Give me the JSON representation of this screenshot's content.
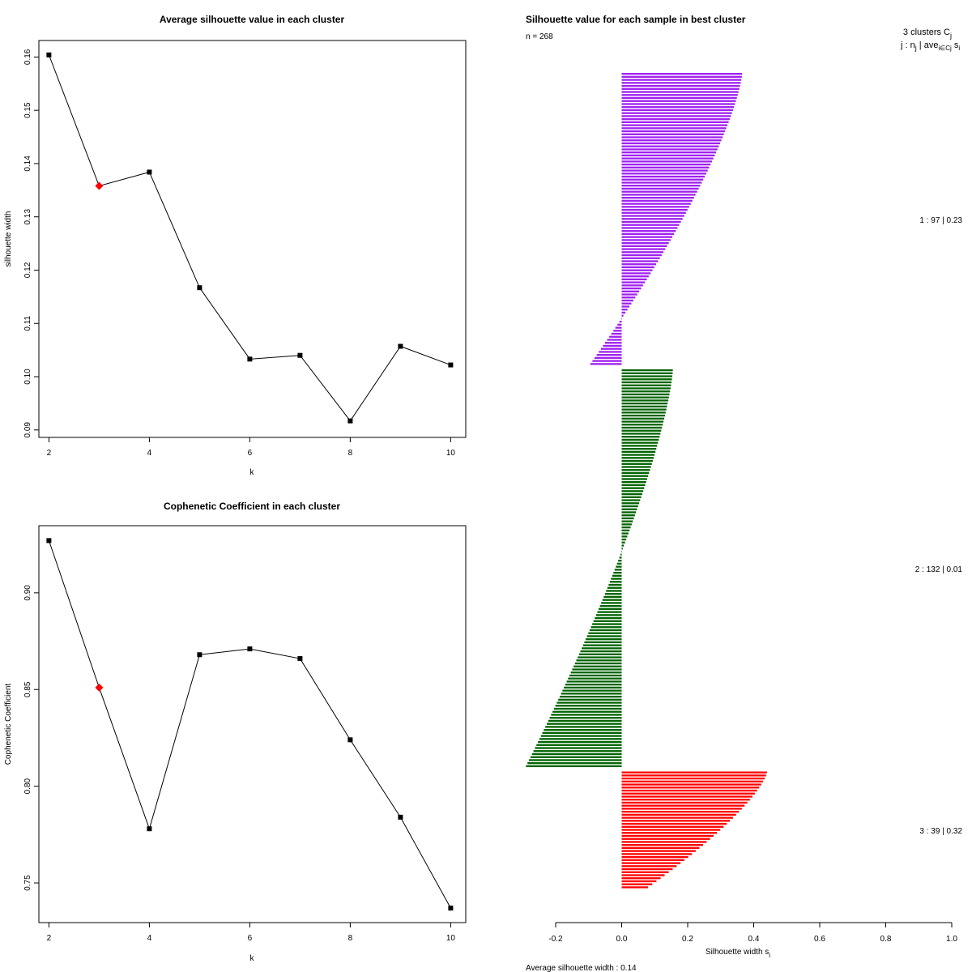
{
  "chart_data": [
    {
      "type": "line",
      "title": "Average silhouette value in each cluster",
      "xlabel": "k",
      "ylabel": "silhouette width",
      "x": [
        2,
        3,
        4,
        5,
        6,
        7,
        8,
        9,
        10
      ],
      "values": [
        0.1604,
        0.1358,
        0.1384,
        0.1167,
        0.1033,
        0.104,
        0.0917,
        0.1057,
        0.1022
      ],
      "highlight_index": 1,
      "highlight_color": "#ff0000",
      "xticks": [
        "2",
        "4",
        "6",
        "8",
        "10"
      ],
      "yticks": [
        "0.09",
        "0.10",
        "0.11",
        "0.12",
        "0.13",
        "0.14",
        "0.15",
        "0.16"
      ],
      "xlim": [
        1.8,
        10.3
      ],
      "ylim": [
        0.0886,
        0.1631
      ]
    },
    {
      "type": "line",
      "title": "Cophenetic Coefficient in each cluster",
      "xlabel": "k",
      "ylabel": "Cophenetic Coefficient",
      "x": [
        2,
        3,
        4,
        5,
        6,
        7,
        8,
        9,
        10
      ],
      "values": [
        0.927,
        0.851,
        0.778,
        0.868,
        0.871,
        0.866,
        0.824,
        0.784,
        0.737
      ],
      "highlight_index": 1,
      "highlight_color": "#ff0000",
      "xticks": [
        "2",
        "4",
        "6",
        "8",
        "10"
      ],
      "yticks": [
        "0.75",
        "0.80",
        "0.85",
        "0.90"
      ],
      "xlim": [
        1.8,
        10.3
      ],
      "ylim": [
        0.7295,
        0.9347
      ]
    },
    {
      "type": "bar",
      "orientation": "horizontal",
      "title": "Silhouette value for each sample in best cluster",
      "n_label": "n = 268",
      "xlabel": "Silhouette width s",
      "xlabel_sub": "i",
      "xlim": [
        -0.2,
        1.0
      ],
      "xticks": [
        "-0.2",
        "0.0",
        "0.2",
        "0.4",
        "0.6",
        "0.8",
        "1.0"
      ],
      "footer": "Average silhouette width :  0.14",
      "legend_header_line1": "3  clusters  C",
      "legend_header_line1_sub": "j",
      "legend_header_line2": "j :  n",
      "legend_header_line2_sub1": "j",
      "legend_header_line2_mid": " | ave",
      "legend_header_line2_sub2": "i∈Cj",
      "legend_header_line2_end": " s",
      "legend_header_line2_sub3": "i",
      "clusters": [
        {
          "label": "1 :   97  |  0.23",
          "color": "#a020f0",
          "n": 97,
          "max": 0.365,
          "min": -0.095,
          "avg": 0.23
        },
        {
          "label": "2 :   132  |  0.01",
          "color": "#006400",
          "n": 132,
          "max": 0.155,
          "min": -0.29,
          "avg": 0.01
        },
        {
          "label": "3 :   39  |  0.32",
          "color": "#ff0000",
          "n": 39,
          "max": 0.44,
          "min": 0.08,
          "avg": 0.32
        }
      ]
    }
  ]
}
